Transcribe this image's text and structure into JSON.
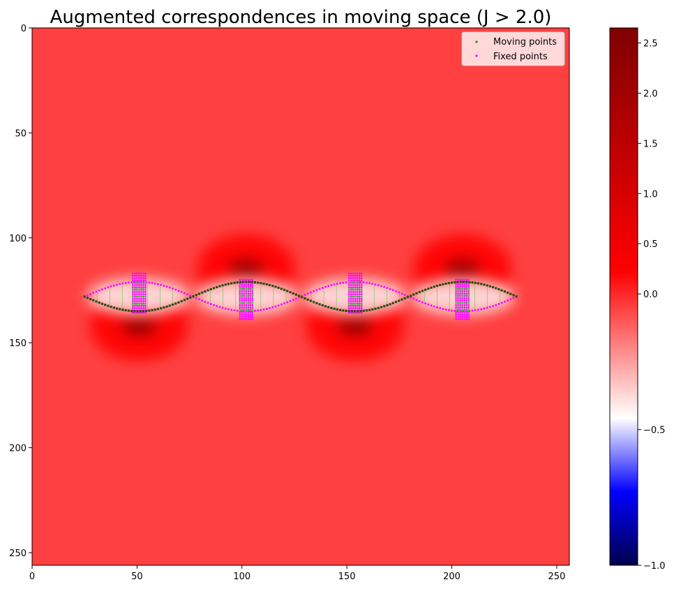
{
  "chart_data": {
    "type": "heatmap",
    "title": "Augmented correspondences in moving space (J > 2.0)",
    "xlabel": "",
    "ylabel": "",
    "xlim": [
      0,
      256
    ],
    "ylim": [
      256,
      0
    ],
    "x_ticks": [
      0,
      50,
      100,
      150,
      200,
      250
    ],
    "y_ticks": [
      0,
      50,
      100,
      150,
      200,
      250
    ],
    "background_value": 1.0,
    "colormap": "seismic",
    "colorbar": {
      "min": -1.0,
      "max": 2.65,
      "ticks": [
        -1.0,
        -0.5,
        0.0,
        0.5,
        1.0,
        1.5,
        2.0,
        2.5
      ],
      "tick_labels": [
        "−1.0",
        "−0.5",
        "0.0",
        "0.5",
        "1.0",
        "1.5",
        "2.0",
        "2.5"
      ]
    },
    "curve": {
      "x_start": 25,
      "x_end": 231,
      "y_center": 128,
      "amplitude": 7,
      "period": 103
    },
    "point_clusters": [
      {
        "x": 51,
        "y_range": [
          117,
          136
        ]
      },
      {
        "x": 102,
        "y_range": [
          120,
          139
        ]
      },
      {
        "x": 154,
        "y_range": [
          117,
          136
        ]
      },
      {
        "x": 205,
        "y_range": [
          120,
          139
        ]
      }
    ],
    "high_value_blobs": [
      {
        "x": 51,
        "y": 142,
        "value": 2.6
      },
      {
        "x": 102,
        "y": 115,
        "value": 2.6
      },
      {
        "x": 154,
        "y": 142,
        "value": 2.6
      },
      {
        "x": 205,
        "y": 115,
        "value": 2.6
      }
    ],
    "series": [
      {
        "name": "Moving points",
        "color": "#1a8c1a",
        "marker": "dot"
      },
      {
        "name": "Fixed points",
        "color": "#ff00ff",
        "marker": "dot"
      }
    ],
    "legend_position": "top-right",
    "grid": false
  },
  "colors": {
    "background_field": "#ff4040",
    "link_lines": "#3cc83c"
  }
}
